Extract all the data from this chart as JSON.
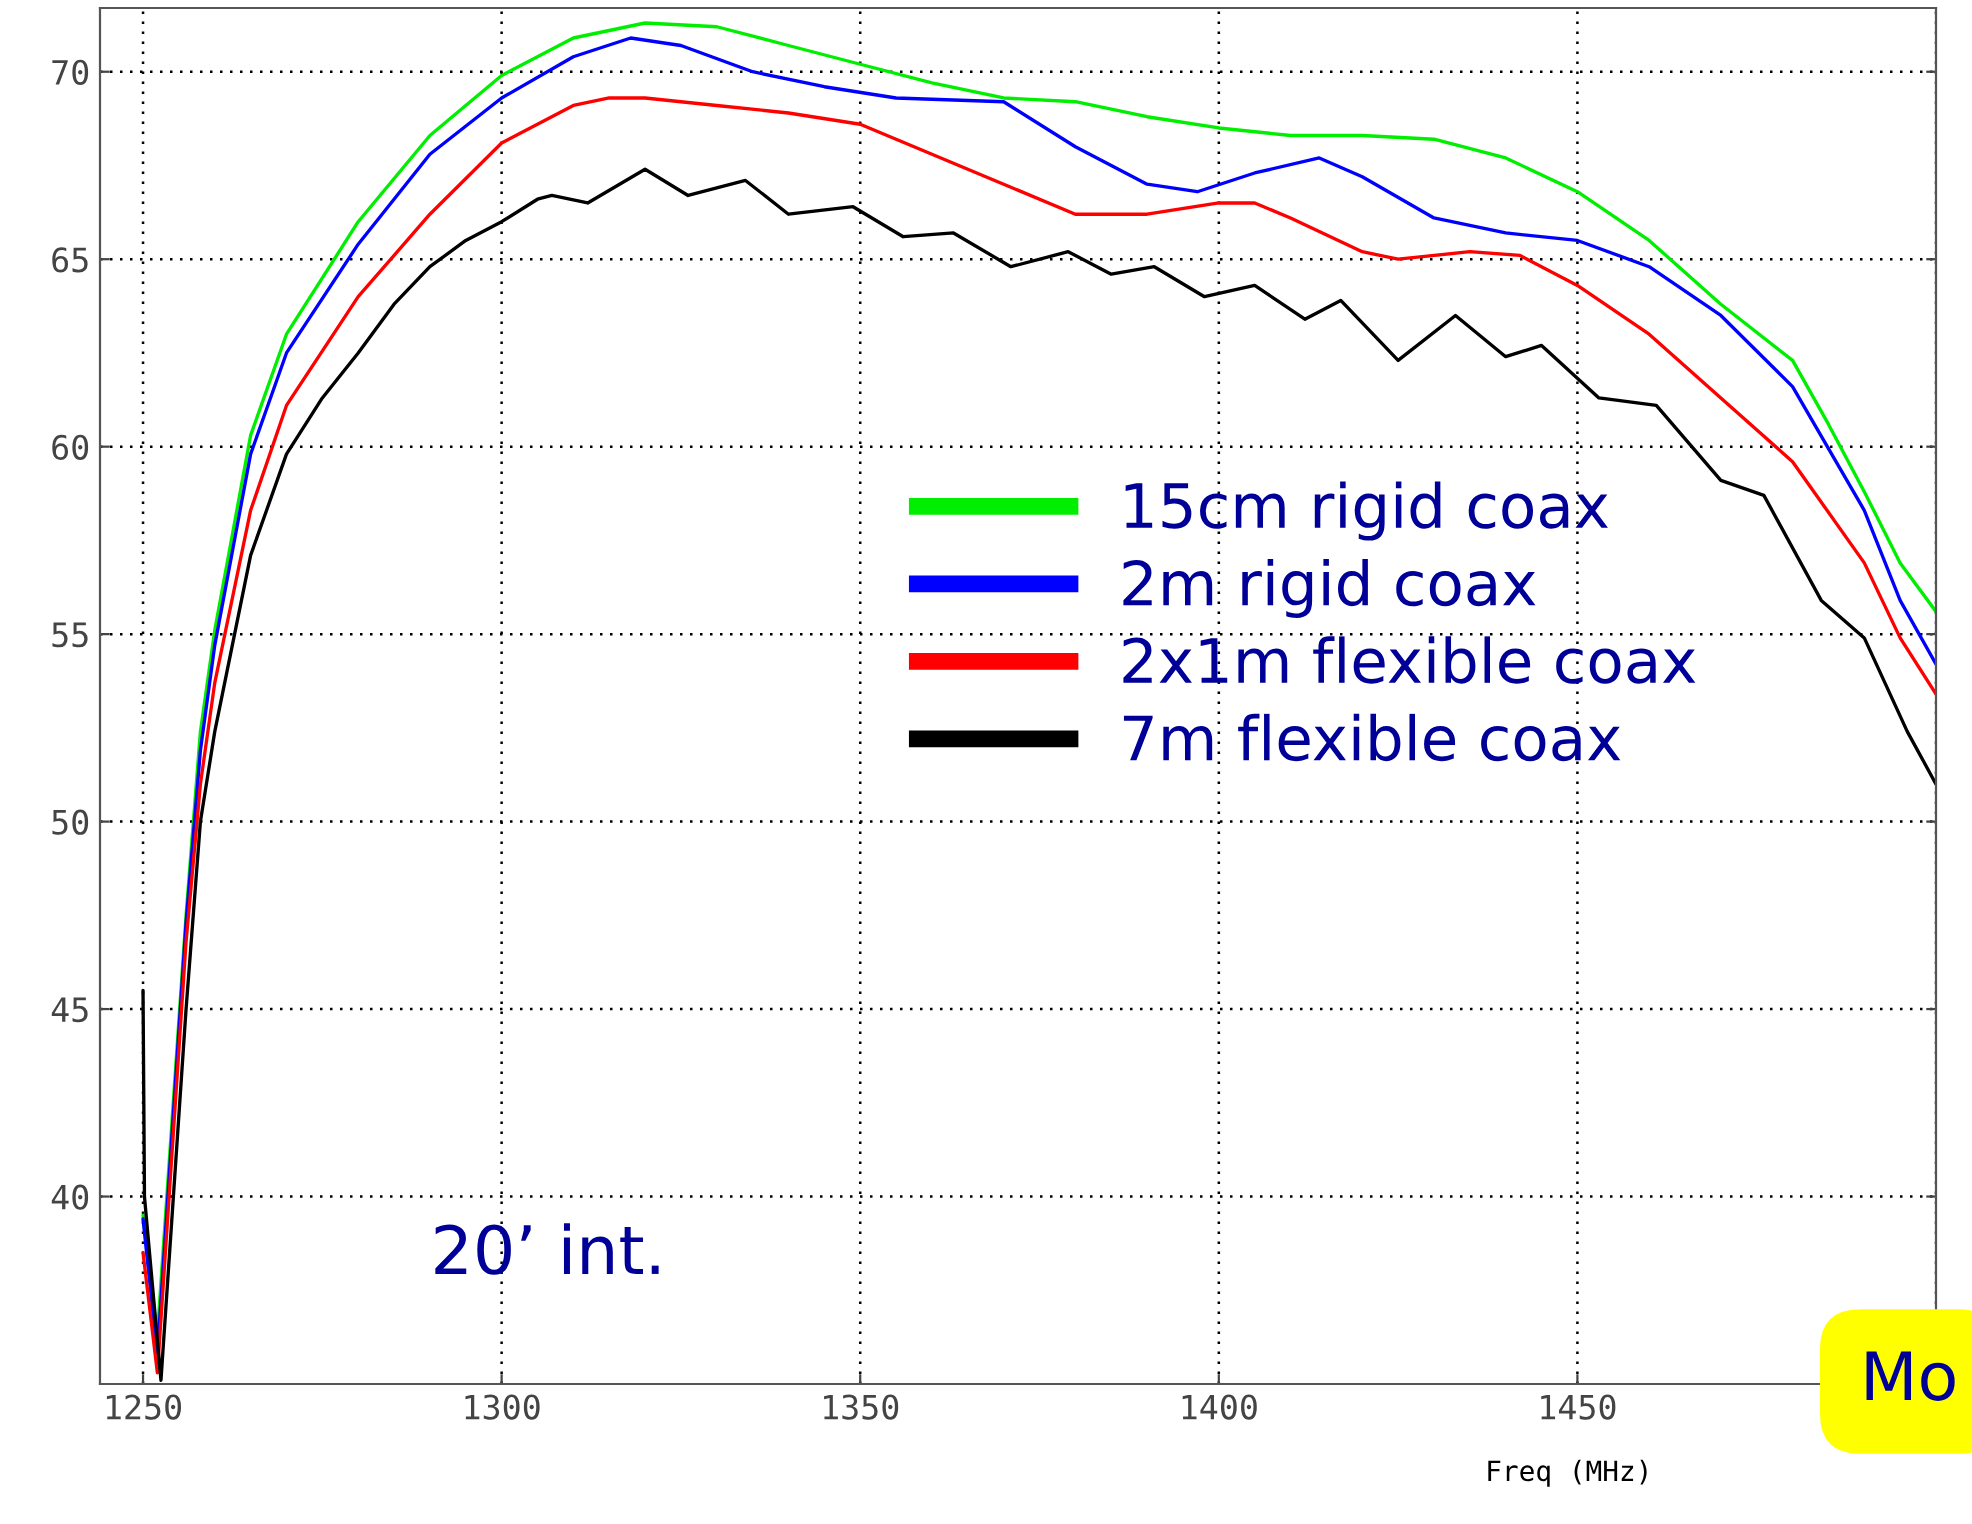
{
  "chart_data": {
    "type": "line",
    "xlabel": "Freq (MHz)",
    "xlim": [
      1244,
      1500
    ],
    "ylim": [
      35,
      71.7
    ],
    "xticks": [
      1250,
      1300,
      1350,
      1400,
      1450,
      {
        "value": 1500,
        "label": null
      }
    ],
    "yticks": [
      40,
      45,
      50,
      55,
      60,
      65,
      70
    ],
    "grid": true,
    "legend": "center right",
    "line_style": "solid",
    "annotations": [
      "20’ int.",
      "Mo"
    ],
    "series": [
      {
        "name": "15cm rigid coax",
        "color": "#00ee00",
        "x": [
          1250,
          1252,
          1256,
          1258,
          1260,
          1265,
          1270,
          1280,
          1290,
          1300,
          1310,
          1320,
          1330,
          1340,
          1350,
          1360,
          1370,
          1380,
          1390,
          1400,
          1410,
          1420,
          1430,
          1440,
          1450,
          1460,
          1470,
          1480,
          1485,
          1490,
          1495,
          1500
        ],
        "values": [
          39.5,
          36.3,
          47.5,
          52.4,
          55.1,
          60.3,
          63.0,
          66.0,
          68.3,
          69.9,
          70.9,
          71.3,
          71.2,
          70.7,
          70.2,
          69.7,
          69.3,
          69.2,
          68.8,
          68.5,
          68.3,
          68.3,
          68.2,
          67.7,
          66.8,
          65.5,
          63.8,
          62.3,
          60.6,
          58.8,
          56.9,
          55.6
        ]
      },
      {
        "name": "2m rigid coax",
        "color": "#0000ff",
        "x": [
          1250,
          1252,
          1256,
          1258,
          1260,
          1265,
          1270,
          1280,
          1290,
          1300,
          1310,
          1318,
          1325,
          1335,
          1345,
          1355,
          1370,
          1380,
          1390,
          1397,
          1405,
          1414,
          1420,
          1430,
          1440,
          1450,
          1460,
          1470,
          1480,
          1490,
          1495,
          1500
        ],
        "values": [
          39.4,
          35.8,
          47.3,
          51.9,
          54.7,
          59.8,
          62.5,
          65.4,
          67.8,
          69.3,
          70.4,
          70.9,
          70.7,
          70.0,
          69.6,
          69.3,
          69.2,
          68.0,
          67.0,
          66.8,
          67.3,
          67.7,
          67.2,
          66.1,
          65.7,
          65.5,
          64.8,
          63.5,
          61.6,
          58.3,
          55.9,
          54.2
        ]
      },
      {
        "name": "2x1m flexible coax",
        "color": "#ff0000",
        "x": [
          1250,
          1252,
          1256,
          1258,
          1260,
          1265,
          1270,
          1280,
          1290,
          1300,
          1310,
          1315,
          1320,
          1330,
          1340,
          1350,
          1360,
          1370,
          1380,
          1390,
          1400,
          1405,
          1410,
          1420,
          1425,
          1435,
          1442,
          1450,
          1460,
          1470,
          1480,
          1490,
          1495,
          1500
        ],
        "values": [
          38.5,
          35.3,
          46.8,
          51.0,
          53.7,
          58.3,
          61.1,
          64.0,
          66.2,
          68.1,
          69.1,
          69.3,
          69.3,
          69.1,
          68.9,
          68.6,
          67.8,
          67.0,
          66.2,
          66.2,
          66.5,
          66.5,
          66.1,
          65.2,
          65.0,
          65.2,
          65.1,
          64.3,
          63.0,
          61.3,
          59.6,
          56.9,
          54.9,
          53.4
        ]
      },
      {
        "name": "7m flexible coax",
        "color": "#000000",
        "x": [
          1250,
          1250.2,
          1252.5,
          1256,
          1258,
          1260,
          1265,
          1270,
          1275,
          1280,
          1285,
          1290,
          1295,
          1300,
          1305,
          1307,
          1312,
          1320,
          1326,
          1334,
          1340,
          1349,
          1356,
          1363,
          1371,
          1379,
          1385,
          1391,
          1398,
          1405,
          1412,
          1417,
          1425,
          1433,
          1440,
          1445,
          1453,
          1461,
          1470,
          1476,
          1484,
          1490,
          1496,
          1500
        ],
        "values": [
          45.5,
          40.0,
          35.1,
          45.0,
          50.0,
          52.4,
          57.1,
          59.8,
          61.3,
          62.5,
          63.8,
          64.8,
          65.5,
          66.0,
          66.6,
          66.7,
          66.5,
          67.4,
          66.7,
          67.1,
          66.2,
          66.4,
          65.6,
          65.7,
          64.8,
          65.2,
          64.6,
          64.8,
          64.0,
          64.3,
          63.4,
          63.9,
          62.3,
          63.5,
          62.4,
          62.7,
          61.3,
          61.1,
          59.1,
          58.7,
          55.9,
          54.9,
          52.4,
          51.0
        ]
      }
    ]
  }
}
